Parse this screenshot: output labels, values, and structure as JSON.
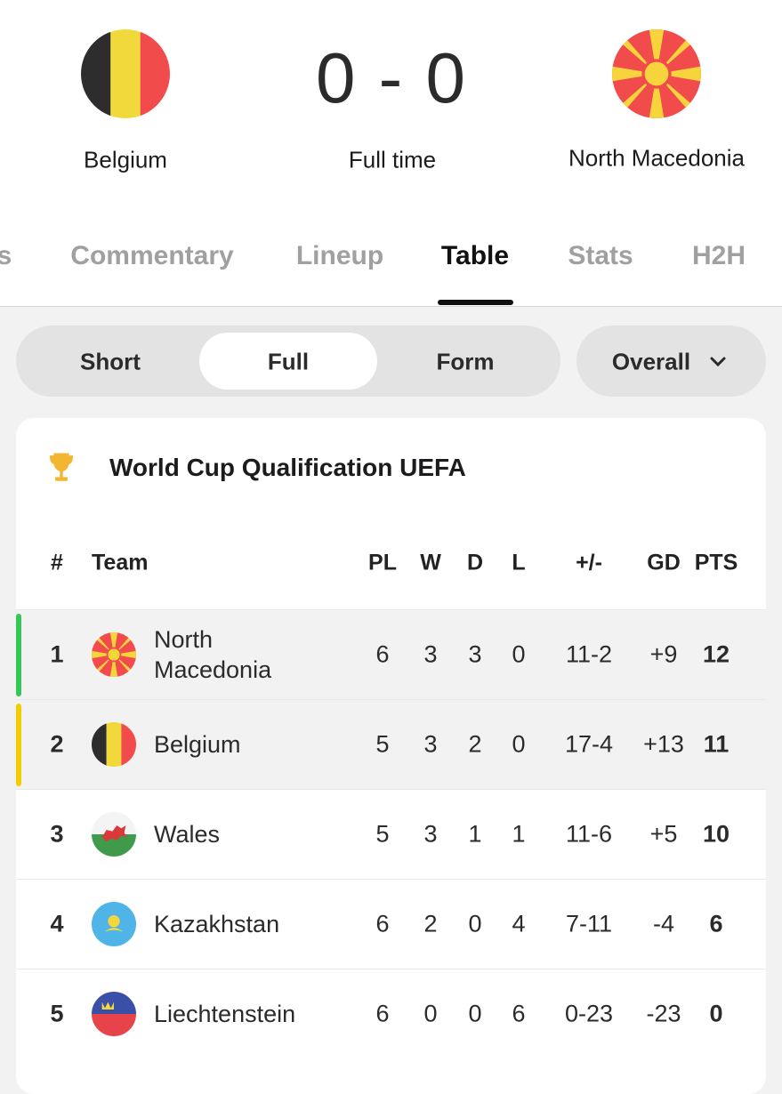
{
  "match": {
    "home": "Belgium",
    "score": "0 - 0",
    "status": "Full time",
    "away": "North Macedonia"
  },
  "tabs": [
    "s",
    "Commentary",
    "Lineup",
    "Table",
    "Stats",
    "H2H"
  ],
  "segments": [
    "Short",
    "Full",
    "Form"
  ],
  "dropdown": "Overall",
  "table": {
    "title": "World Cup Qualification UEFA",
    "headers": [
      "#",
      "Team",
      "PL",
      "W",
      "D",
      "L",
      "+/-",
      "GD",
      "PTS"
    ],
    "rows": [
      [
        1,
        "North Macedonia",
        6,
        3,
        3,
        0,
        "11-2",
        "+9",
        12
      ],
      [
        2,
        "Belgium",
        5,
        3,
        2,
        0,
        "17-4",
        "+13",
        11
      ],
      [
        3,
        "Wales",
        5,
        3,
        1,
        1,
        "11-6",
        "+5",
        10
      ],
      [
        4,
        "Kazakhstan",
        6,
        2,
        0,
        4,
        "7-11",
        "-4",
        6
      ],
      [
        5,
        "Liechtenstein",
        6,
        0,
        0,
        6,
        "0-23",
        "-23",
        0
      ]
    ]
  }
}
